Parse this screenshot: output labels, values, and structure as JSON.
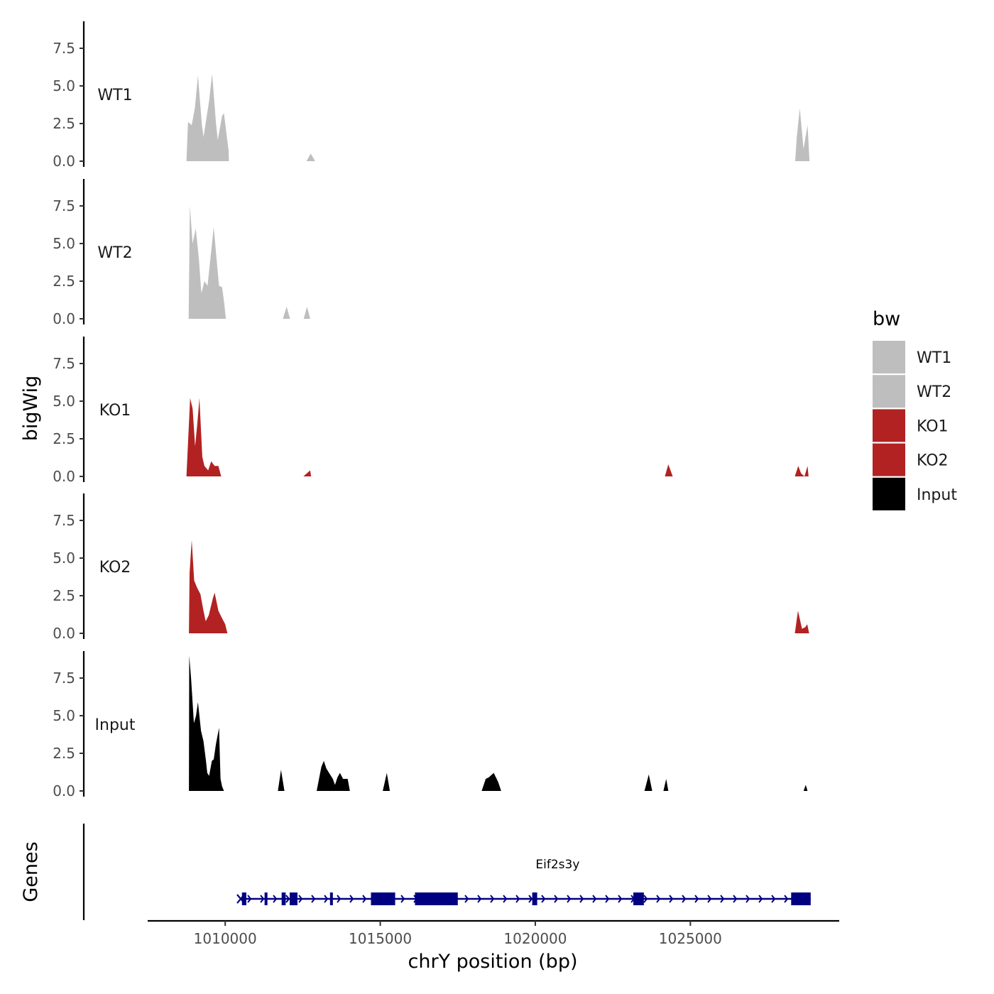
{
  "chart_data": {
    "type": "area",
    "ylabel": "bigWig",
    "genes_label": "Genes",
    "xlabel": "chrY position (bp)",
    "xlim": [
      1007500,
      1029800
    ],
    "x_ticks": [
      1010000,
      1015000,
      1020000,
      1025000
    ],
    "x_tick_labels": [
      "1010000",
      "1015000",
      "1020000",
      "1025000"
    ],
    "ylim": [
      0,
      9.3
    ],
    "y_ticks": [
      0,
      2.5,
      5,
      7.5
    ],
    "y_tick_labels": [
      "0.0",
      "2.5",
      "5.0",
      "7.5"
    ],
    "legend": {
      "title": "bw",
      "items": [
        {
          "label": "WT1",
          "color": "#bebebe"
        },
        {
          "label": "WT2",
          "color": "#bebebe"
        },
        {
          "label": "KO1",
          "color": "#b22222"
        },
        {
          "label": "KO2",
          "color": "#b22222"
        },
        {
          "label": "Input",
          "color": "#000000"
        }
      ]
    },
    "series": [
      {
        "name": "WT1",
        "color": "#bebebe",
        "points": [
          [
            1008750,
            0
          ],
          [
            1008800,
            2.6
          ],
          [
            1008920,
            2.4
          ],
          [
            1009020,
            3.5
          ],
          [
            1009120,
            5.7
          ],
          [
            1009250,
            2.4
          ],
          [
            1009300,
            1.6
          ],
          [
            1009480,
            4.0
          ],
          [
            1009580,
            5.8
          ],
          [
            1009700,
            2.6
          ],
          [
            1009760,
            1.4
          ],
          [
            1009900,
            3.0
          ],
          [
            1009960,
            3.2
          ],
          [
            1010030,
            2.0
          ],
          [
            1010110,
            0.7
          ],
          [
            1010120,
            0
          ],
          [
            1012620,
            0
          ],
          [
            1012760,
            0.5
          ],
          [
            1012900,
            0
          ],
          [
            1028380,
            0
          ],
          [
            1028430,
            1.6
          ],
          [
            1028530,
            3.5
          ],
          [
            1028650,
            0.8
          ],
          [
            1028780,
            2.4
          ],
          [
            1028840,
            0
          ]
        ]
      },
      {
        "name": "WT2",
        "color": "#bebebe",
        "points": [
          [
            1008820,
            0
          ],
          [
            1008860,
            7.5
          ],
          [
            1008950,
            5.0
          ],
          [
            1009050,
            6.0
          ],
          [
            1009150,
            4.0
          ],
          [
            1009230,
            1.7
          ],
          [
            1009330,
            2.5
          ],
          [
            1009430,
            2.2
          ],
          [
            1009550,
            4.5
          ],
          [
            1009630,
            6.1
          ],
          [
            1009750,
            3.3
          ],
          [
            1009800,
            2.2
          ],
          [
            1009900,
            2.1
          ],
          [
            1009970,
            1.0
          ],
          [
            1010020,
            0
          ],
          [
            1011860,
            0
          ],
          [
            1011980,
            0.8
          ],
          [
            1012090,
            0
          ],
          [
            1012530,
            0
          ],
          [
            1012640,
            0.8
          ],
          [
            1012740,
            0
          ]
        ]
      },
      {
        "name": "KO1",
        "color": "#b22222",
        "points": [
          [
            1008750,
            0
          ],
          [
            1008870,
            5.2
          ],
          [
            1008950,
            4.5
          ],
          [
            1009030,
            2.0
          ],
          [
            1009100,
            3.5
          ],
          [
            1009170,
            5.2
          ],
          [
            1009260,
            1.3
          ],
          [
            1009330,
            0.7
          ],
          [
            1009450,
            0.4
          ],
          [
            1009550,
            1.0
          ],
          [
            1009660,
            0.7
          ],
          [
            1009780,
            0.7
          ],
          [
            1009870,
            0
          ],
          [
            1012520,
            0
          ],
          [
            1012740,
            0.4
          ],
          [
            1012770,
            0
          ],
          [
            1024180,
            0
          ],
          [
            1024290,
            0.8
          ],
          [
            1024430,
            0
          ],
          [
            1028370,
            0
          ],
          [
            1028480,
            0.7
          ],
          [
            1028570,
            0.2
          ],
          [
            1028680,
            0
          ],
          [
            1028780,
            0.7
          ],
          [
            1028810,
            0
          ]
        ]
      },
      {
        "name": "KO2",
        "color": "#b22222",
        "points": [
          [
            1008830,
            0
          ],
          [
            1008850,
            4.0
          ],
          [
            1008920,
            6.2
          ],
          [
            1009000,
            3.5
          ],
          [
            1009100,
            3.0
          ],
          [
            1009200,
            2.6
          ],
          [
            1009300,
            1.5
          ],
          [
            1009370,
            0.8
          ],
          [
            1009470,
            1.2
          ],
          [
            1009600,
            2.3
          ],
          [
            1009660,
            2.7
          ],
          [
            1009780,
            1.5
          ],
          [
            1009900,
            1.0
          ],
          [
            1010000,
            0.6
          ],
          [
            1010070,
            0
          ],
          [
            1028370,
            0
          ],
          [
            1028470,
            1.5
          ],
          [
            1028600,
            0.3
          ],
          [
            1028700,
            0.4
          ],
          [
            1028770,
            0.6
          ],
          [
            1028830,
            0
          ]
        ]
      },
      {
        "name": "Input",
        "color": "#000000",
        "points": [
          [
            1008830,
            0
          ],
          [
            1008840,
            9.0
          ],
          [
            1008900,
            7.5
          ],
          [
            1008990,
            4.5
          ],
          [
            1009060,
            5.0
          ],
          [
            1009120,
            5.9
          ],
          [
            1009220,
            4.0
          ],
          [
            1009300,
            3.3
          ],
          [
            1009380,
            2.0
          ],
          [
            1009420,
            1.2
          ],
          [
            1009480,
            1.0
          ],
          [
            1009570,
            2.0
          ],
          [
            1009630,
            2.1
          ],
          [
            1009700,
            3.1
          ],
          [
            1009800,
            4.2
          ],
          [
            1009850,
            0.8
          ],
          [
            1009900,
            0.3
          ],
          [
            1009960,
            0
          ],
          [
            1011700,
            0
          ],
          [
            1011800,
            1.4
          ],
          [
            1011910,
            0
          ],
          [
            1012950,
            0
          ],
          [
            1013100,
            1.6
          ],
          [
            1013180,
            2.0
          ],
          [
            1013260,
            1.5
          ],
          [
            1013350,
            1.2
          ],
          [
            1013470,
            0.8
          ],
          [
            1013540,
            0.4
          ],
          [
            1013620,
            0.9
          ],
          [
            1013700,
            1.2
          ],
          [
            1013800,
            0.8
          ],
          [
            1013950,
            0.8
          ],
          [
            1014020,
            0
          ],
          [
            1015080,
            0
          ],
          [
            1015210,
            1.2
          ],
          [
            1015310,
            0
          ],
          [
            1018270,
            0
          ],
          [
            1018400,
            0.8
          ],
          [
            1018500,
            0.9
          ],
          [
            1018660,
            1.2
          ],
          [
            1018800,
            0.6
          ],
          [
            1018900,
            0
          ],
          [
            1023520,
            0
          ],
          [
            1023660,
            1.1
          ],
          [
            1023770,
            0
          ],
          [
            1024130,
            0
          ],
          [
            1024220,
            0.8
          ],
          [
            1024290,
            0
          ],
          [
            1028650,
            0
          ],
          [
            1028720,
            0.4
          ],
          [
            1028780,
            0
          ]
        ]
      }
    ],
    "gene": {
      "name": "Eif2s3y",
      "color": "#000080",
      "start": 1010500,
      "end": 1028880,
      "strand": "+",
      "exons": [
        [
          1010540,
          1010680
        ],
        [
          1011270,
          1011330
        ],
        [
          1011820,
          1011950
        ],
        [
          1012080,
          1012330
        ],
        [
          1013380,
          1013470
        ],
        [
          1014700,
          1015480
        ],
        [
          1016120,
          1017500
        ],
        [
          1019900,
          1020060
        ],
        [
          1023160,
          1023500
        ],
        [
          1028250,
          1028880
        ]
      ]
    }
  }
}
